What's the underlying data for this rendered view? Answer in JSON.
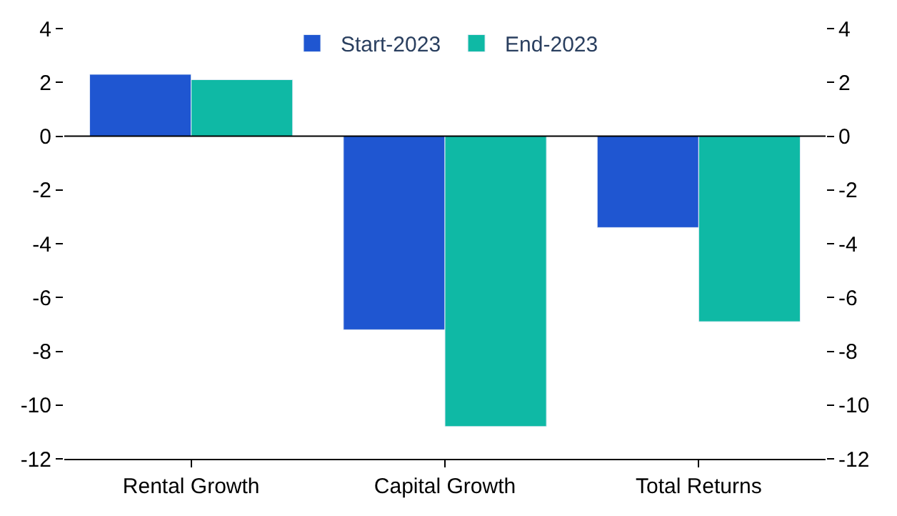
{
  "chart_data": {
    "type": "bar",
    "categories": [
      "Rental Growth",
      "Capital Growth",
      "Total Returns"
    ],
    "series": [
      {
        "name": "Start-2023",
        "color": "#1f56d1",
        "values": [
          2.3,
          -7.2,
          -3.4
        ]
      },
      {
        "name": "End-2023",
        "color": "#0fb9a5",
        "values": [
          2.1,
          -10.8,
          -6.9
        ]
      }
    ],
    "ylim": [
      -12,
      4
    ],
    "yticks": [
      -12,
      -10,
      -8,
      -6,
      -4,
      -2,
      0,
      2,
      4
    ],
    "y2lim": [
      -12,
      4
    ],
    "y2ticks": [
      -12,
      -10,
      -8,
      -6,
      -4,
      -2,
      0,
      2,
      4
    ],
    "ref_lines": [
      {
        "axis": "y",
        "value": 0,
        "color": "#000000"
      }
    ],
    "legend": "top"
  }
}
